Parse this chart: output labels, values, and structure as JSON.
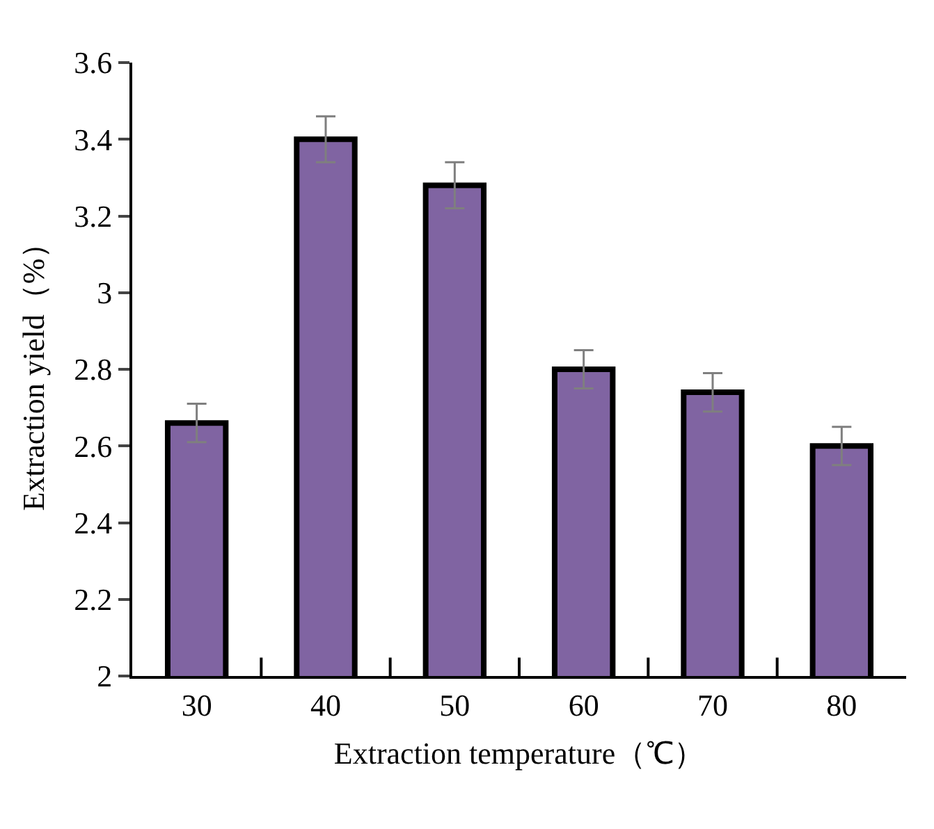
{
  "chart_data": {
    "type": "bar",
    "xlabel": "Extraction temperature（℃）",
    "ylabel": "Extraction yield（%）",
    "categories": [
      "30",
      "40",
      "50",
      "60",
      "70",
      "80"
    ],
    "values": [
      2.66,
      3.4,
      3.28,
      2.8,
      2.74,
      2.6
    ],
    "errors": [
      0.05,
      0.06,
      0.06,
      0.05,
      0.05,
      0.05
    ],
    "color": "#8064a2",
    "ylim": [
      2,
      3.6
    ],
    "yticks": [
      {
        "value": 2,
        "label": "2"
      },
      2.2,
      2.4,
      2.6,
      2.8,
      {
        "value": 3,
        "label": "3"
      },
      3.2,
      3.4,
      3.6
    ],
    "tick_labels": "xy"
  }
}
